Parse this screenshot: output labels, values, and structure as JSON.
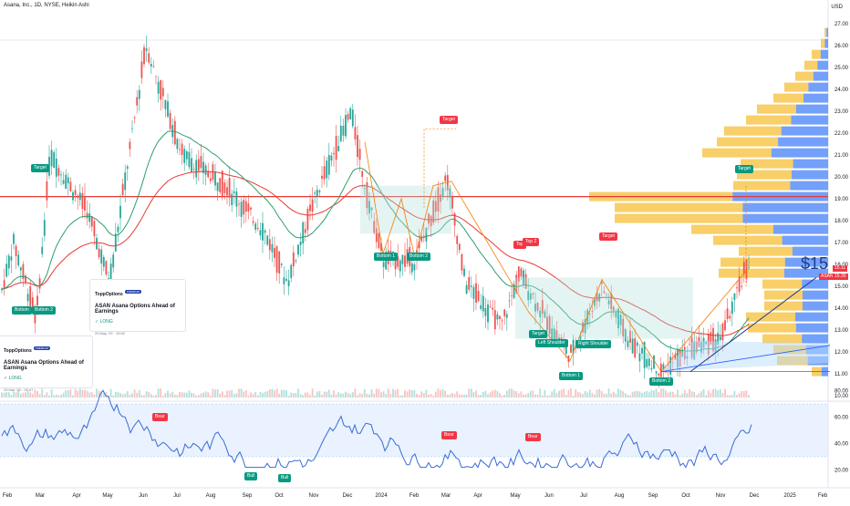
{
  "header": {
    "title": "Asana, Inc., 1D, NYSE, Heikin Ashi",
    "currency": "USD"
  },
  "price_axis": {
    "ticks": [
      "27.00",
      "26.00",
      "25.00",
      "24.00",
      "23.00",
      "22.00",
      "21.00",
      "20.00",
      "19.00",
      "18.00",
      "17.00",
      "16.00",
      "15.00",
      "14.00",
      "13.00",
      "12.00",
      "11.00",
      "10.00"
    ]
  },
  "osc_axis": {
    "ticks": [
      "80.00",
      "60.00",
      "40.00",
      "20.00"
    ]
  },
  "time_axis": {
    "ticks": [
      "Feb",
      "Mar",
      "Apr",
      "May",
      "Jun",
      "Jul",
      "Aug",
      "Sep",
      "Oct",
      "Nov",
      "Dec",
      "2024",
      "Feb",
      "Mar",
      "Apr",
      "May",
      "Jun",
      "Jul",
      "Aug",
      "Sep",
      "Oct",
      "Nov",
      "Dec",
      "2025",
      "Feb"
    ]
  },
  "last_price": {
    "big": "$15",
    "symbol": "ASAN",
    "value": "15.11",
    "value2": "15.30",
    "symbol_color": "#f23645"
  },
  "cards": [
    {
      "brand": "ToppOptions",
      "badge": "PREMIUM",
      "title": "ASAN Asana Options Ahead of Earnings",
      "status": "LONG",
      "date": "29 May '23 · 19:52"
    },
    {
      "brand": "ToppOptions",
      "badge": "PREMIUM",
      "title": "ASAN Asana Options Ahead of Earnings",
      "status": "LONG",
      "date": "29 Mar '23 · 09:47"
    }
  ],
  "tags": {
    "target_1": "Target",
    "bottom_a": "Bottom",
    "bottom_b": "Bottom 2",
    "target_2": "Target",
    "bottom_1": "Bottom 1",
    "bottom_2": "Bottom 2",
    "top_1": "Top",
    "top_2": "Top 2",
    "target_3": "Target",
    "target_4": "Target",
    "left_shoulder": "Left Shoulder",
    "right_shoulder": "Right Shoulder",
    "bottom_1b": "Bottom 1",
    "bottom_2b": "Bottom 2",
    "target_5": "Target",
    "bear_1": "Bear",
    "bull_1": "Bull",
    "bull_2": "Bull",
    "bear_2": "Bear",
    "bear_3": "Bear"
  },
  "colors": {
    "up": "#26a69a",
    "down": "#ef5350",
    "ema_fast": "#2e9e6e",
    "ema_slow": "#e53935",
    "hline": "#e53935",
    "vp_up": "#f7c74d",
    "vp_down": "#5b8ff9",
    "osc": "#3a6bd6",
    "band": "#dbeafe"
  }
}
